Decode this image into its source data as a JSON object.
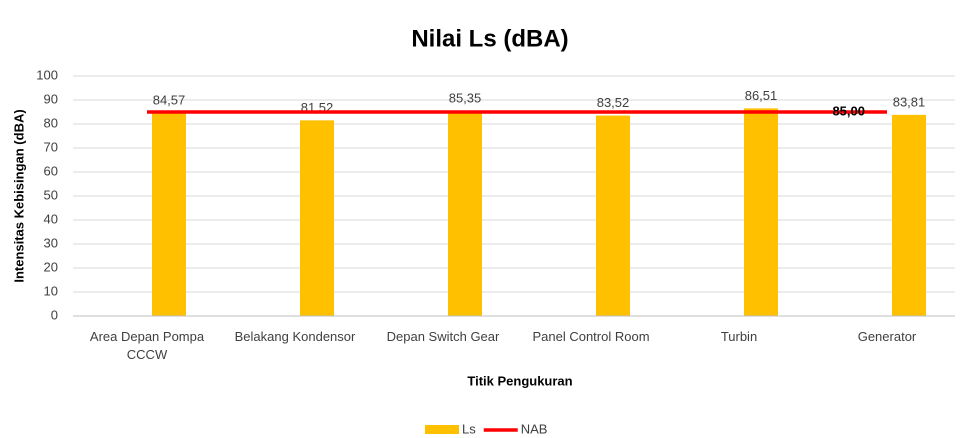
{
  "chart_data": {
    "type": "bar",
    "title": "Nilai Ls (dBA)",
    "x_label": "Titik Pengukuran",
    "y_label": "Intensitas Kebisingan (dBA)",
    "categories": [
      "Area Depan Pompa CCCW",
      "Belakang Kondensor",
      "Depan Switch Gear",
      "Panel Control Room",
      "Turbin",
      "Generator"
    ],
    "series": [
      {
        "name": "Ls",
        "type": "bar",
        "color": "#ffc000",
        "values": [
          84.57,
          81.52,
          85.35,
          83.52,
          86.51,
          83.81
        ],
        "value_labels": [
          "84,57",
          "81,52",
          "85,35",
          "83,52",
          "86,51",
          "83,81"
        ]
      },
      {
        "name": "NAB",
        "type": "line",
        "color": "#ff0000",
        "values": [
          85,
          85,
          85,
          85,
          85,
          85
        ],
        "value_labels": [
          null,
          null,
          null,
          null,
          null,
          "85,00"
        ]
      }
    ],
    "ylim": [
      0,
      100
    ],
    "yticks": [
      0,
      10,
      20,
      30,
      40,
      50,
      60,
      70,
      80,
      90,
      100
    ],
    "grid": true,
    "legend": "bottom"
  }
}
